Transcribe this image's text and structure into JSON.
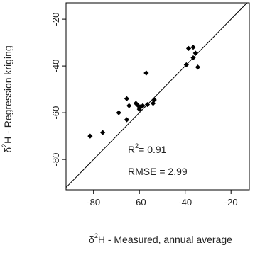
{
  "chart_data": {
    "type": "scatter",
    "xlabel": {
      "prefix": "δ",
      "sup": "2",
      "rest": "H - Measured, annual average"
    },
    "ylabel": {
      "prefix": "δ",
      "sup": "2",
      "rest": "H - Regression kriging"
    },
    "xlim": [
      -92,
      -12
    ],
    "ylim": [
      -93,
      -13
    ],
    "x_ticks": [
      "-80",
      "-60",
      "-40",
      "-20"
    ],
    "y_ticks": [
      "-20",
      "-40",
      "-60",
      "-80"
    ],
    "x_tick_values": [
      -80,
      -60,
      -40,
      -20
    ],
    "y_tick_values": [
      -20,
      -40,
      -60,
      -80
    ],
    "reference_line": "1:1",
    "grid": false,
    "marker_color": "#000000",
    "points": [
      {
        "x": -81.5,
        "y": -70.0
      },
      {
        "x": -76.0,
        "y": -68.5
      },
      {
        "x": -69.0,
        "y": -60.0
      },
      {
        "x": -65.5,
        "y": -63.0
      },
      {
        "x": -65.5,
        "y": -54.0
      },
      {
        "x": -64.5,
        "y": -57.0
      },
      {
        "x": -61.5,
        "y": -56.0
      },
      {
        "x": -60.5,
        "y": -57.0
      },
      {
        "x": -60.0,
        "y": -58.5
      },
      {
        "x": -59.5,
        "y": -57.5
      },
      {
        "x": -58.5,
        "y": -57.0
      },
      {
        "x": -57.0,
        "y": -43.0
      },
      {
        "x": -56.5,
        "y": -56.5
      },
      {
        "x": -54.0,
        "y": -56.0
      },
      {
        "x": -53.5,
        "y": -54.5
      },
      {
        "x": -39.5,
        "y": -39.5
      },
      {
        "x": -38.5,
        "y": -32.5
      },
      {
        "x": -36.5,
        "y": -36.5
      },
      {
        "x": -36.5,
        "y": -32.0
      },
      {
        "x": -35.5,
        "y": -34.5
      },
      {
        "x": -34.5,
        "y": -40.5
      }
    ],
    "annotations": {
      "r2": {
        "prefix": "R",
        "sup": "2",
        "rest": "= 0.91"
      },
      "rmse": "RMSE = 2.99"
    }
  }
}
